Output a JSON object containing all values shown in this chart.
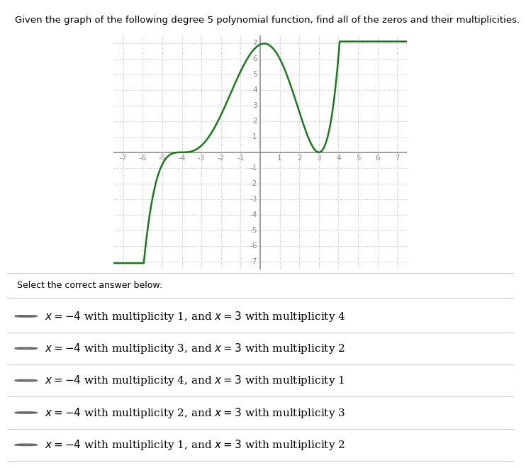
{
  "title": "Given the graph of the following degree 5 polynomial function, find all of the zeros and their multiplicities.",
  "zero1": -4,
  "mult1": 3,
  "zero2": 3,
  "mult2": 2,
  "scale": 0.012,
  "xmin": -7,
  "xmax": 7,
  "ymin": -7,
  "ymax": 7,
  "curve_color": "#1a7a1a",
  "curve_linewidth": 1.8,
  "grid_color": "#b0b0e0",
  "axis_color": "#888888",
  "tick_color": "#888888",
  "background_color": "#ffffff",
  "options_math": [
    "$x = -4$ with multiplicity 1, and $x = 3$ with multiplicity 4",
    "$x = -4$ with multiplicity 3, and $x = 3$ with multiplicity 2",
    "$x = -4$ with multiplicity 4, and $x = 3$ with multiplicity 1",
    "$x = -4$ with multiplicity 2, and $x = 3$ with multiplicity 3",
    "$x = -4$ with multiplicity 1, and $x = 3$ with multiplicity 2"
  ],
  "select_text": "Select the correct answer below:",
  "title_fontsize": 9.5,
  "tick_fontsize": 7.5,
  "option_fontsize": 11
}
